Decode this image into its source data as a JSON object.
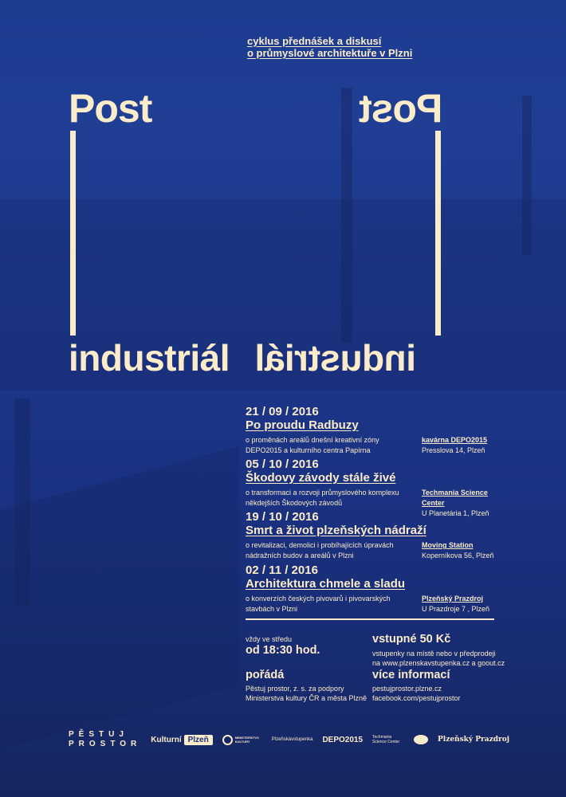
{
  "header": {
    "line1": "cyklus přednášek a diskusí",
    "line2": "o průmyslové architektuře v Plzni"
  },
  "title": {
    "post": "Post",
    "word": "industriál"
  },
  "events": [
    {
      "date": "21 / 09 / 2016",
      "title": "Po proudu Radbuzy",
      "desc1": "o proměnách areálů dnešní kreativní zóny",
      "desc2": "DEPO2015 a kulturního centra Papírna",
      "venue": "kavárna DEPO2015",
      "address": "Presslova 14, Plzeň"
    },
    {
      "date": "05 / 10 / 2016",
      "title": "Škodovy závody stále živé",
      "desc1": "o transformaci a rozvoji průmyslového komplexu",
      "desc2": "někdejších Škodových závodů",
      "venue": "Techmania Science Center",
      "address": "U Planetária 1, Plzeň"
    },
    {
      "date": "19 / 10 / 2016",
      "title": "Smrt a život plzeňských nádraží",
      "desc1": "o revitalizaci, demolici i probíhajících úpravách",
      "desc2": "nádražních budov a areálů v Plzni",
      "venue": "Moving Station",
      "address": "Koperníkova 56, Plzeň"
    },
    {
      "date": "02 / 11 / 2016",
      "title": "Architektura chmele a sladu",
      "desc1": "o konverzích českých pivovarů i pivovarských",
      "desc2": "stavbách v Plzni",
      "venue": "Plzeňský Prazdroj",
      "address": "U Prazdroje 7 , Plzeň"
    }
  ],
  "info": {
    "when_label": "vždy ve středu",
    "when": "od 18:30 hod.",
    "price": "vstupné 50 Kč",
    "price_note1": "vstupenky na místě nebo v předprodeji",
    "price_note2": "na www.plzenskavstupenka.cz a goout.cz",
    "org_label": "pořádá",
    "org1": "Pěstuj prostor, z. s. za podpory",
    "org2": "Ministerstva kultury ČR a města Plzně",
    "more_label": "více informací",
    "more1": "pestujprostor.plzne.cz",
    "more2": "facebook.com/pestujprostor"
  },
  "logos": {
    "pestuj1": "PĚSTUJ",
    "pestuj2": "PROSTOR",
    "kulturni": "Kulturní",
    "plzen": "Plzeň",
    "ministerstvo": "MINISTERSTVO KULTURY",
    "vstupenka": "Plzeňskávstupenka",
    "depo": "DEPO2015",
    "techmania": "Techmania Science Center",
    "prazdroj": "Plzeňský Prazdroj"
  },
  "colors": {
    "background": "#1f3e94",
    "text": "#fbecc9"
  }
}
